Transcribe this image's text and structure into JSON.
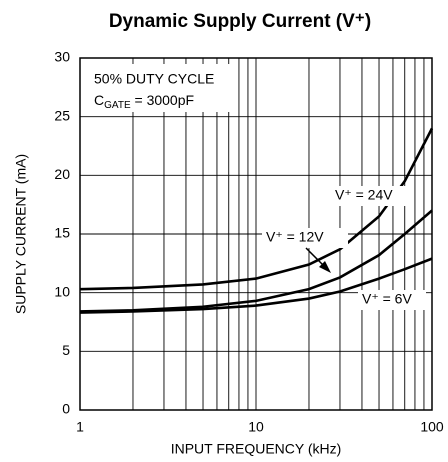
{
  "chart_data": {
    "type": "line",
    "title": "Dynamic Supply Current (V⁺)",
    "xlabel": "INPUT FREQUENCY (kHz)",
    "ylabel": "SUPPLY CURRENT (mA)",
    "xscale": "log",
    "xlim": [
      1,
      100
    ],
    "xticks": [
      1,
      10,
      100
    ],
    "xgrid": [
      1,
      2,
      3,
      4,
      5,
      6,
      7,
      8,
      9,
      10,
      20,
      30,
      40,
      50,
      60,
      70,
      80,
      90,
      100
    ],
    "ylim": [
      0,
      30
    ],
    "yticks": [
      0,
      5,
      10,
      15,
      20,
      25,
      30
    ],
    "grid": true,
    "x": [
      1,
      2,
      5,
      10,
      20,
      30,
      50,
      70,
      100
    ],
    "series": [
      {
        "name": "V⁺ = 24V",
        "color": "#000000",
        "values": [
          10.3,
          10.4,
          10.7,
          11.2,
          12.4,
          13.7,
          16.5,
          19.5,
          24
        ]
      },
      {
        "name": "V⁺ = 12V",
        "color": "#000000",
        "values": [
          8.4,
          8.5,
          8.8,
          9.3,
          10.3,
          11.3,
          13.2,
          15,
          17
        ]
      },
      {
        "name": "V⁺ = 6V",
        "color": "#000000",
        "values": [
          8.3,
          8.4,
          8.6,
          8.9,
          9.5,
          10.1,
          11.2,
          12,
          12.9
        ]
      }
    ],
    "annotations": [
      "50% DUTY CYCLE",
      {
        "text": "C",
        "sub": "GATE",
        "rest": " = 3000pF"
      }
    ]
  }
}
